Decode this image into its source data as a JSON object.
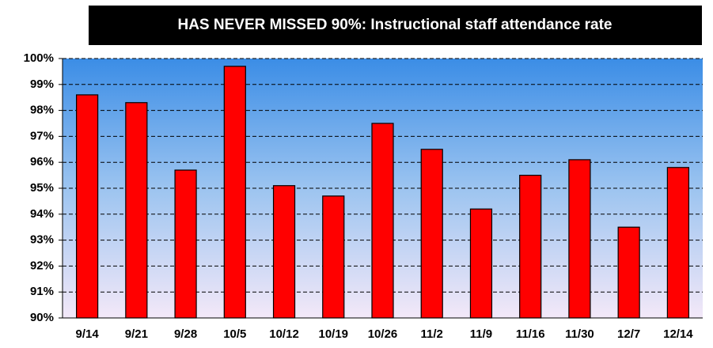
{
  "chart_data": {
    "type": "bar",
    "title": "HAS NEVER MISSED 90%: Instructional staff attendance rate",
    "categories": [
      "9/14",
      "9/21",
      "9/28",
      "10/5",
      "10/12",
      "10/19",
      "10/26",
      "11/2",
      "11/9",
      "11/16",
      "11/30",
      "12/7",
      "12/14"
    ],
    "values": [
      98.6,
      98.3,
      95.7,
      99.7,
      95.1,
      94.7,
      97.5,
      96.5,
      94.2,
      95.5,
      96.1,
      93.5,
      95.8
    ],
    "color": "#ff0000",
    "ylim": [
      90,
      100
    ],
    "yticks": [
      {
        "value": 90,
        "label": "90%"
      },
      {
        "value": 91,
        "label": "91%"
      },
      {
        "value": 92,
        "label": "92%"
      },
      {
        "value": 93,
        "label": "93%"
      },
      {
        "value": 94,
        "label": "94%"
      },
      {
        "value": 95,
        "label": "95%"
      },
      {
        "value": 96,
        "label": "96%"
      },
      {
        "value": 97,
        "label": "97%"
      },
      {
        "value": 98,
        "label": "98%"
      },
      {
        "value": 99,
        "label": "99%"
      },
      {
        "value": 100,
        "label": "100%"
      }
    ],
    "grid": true
  }
}
